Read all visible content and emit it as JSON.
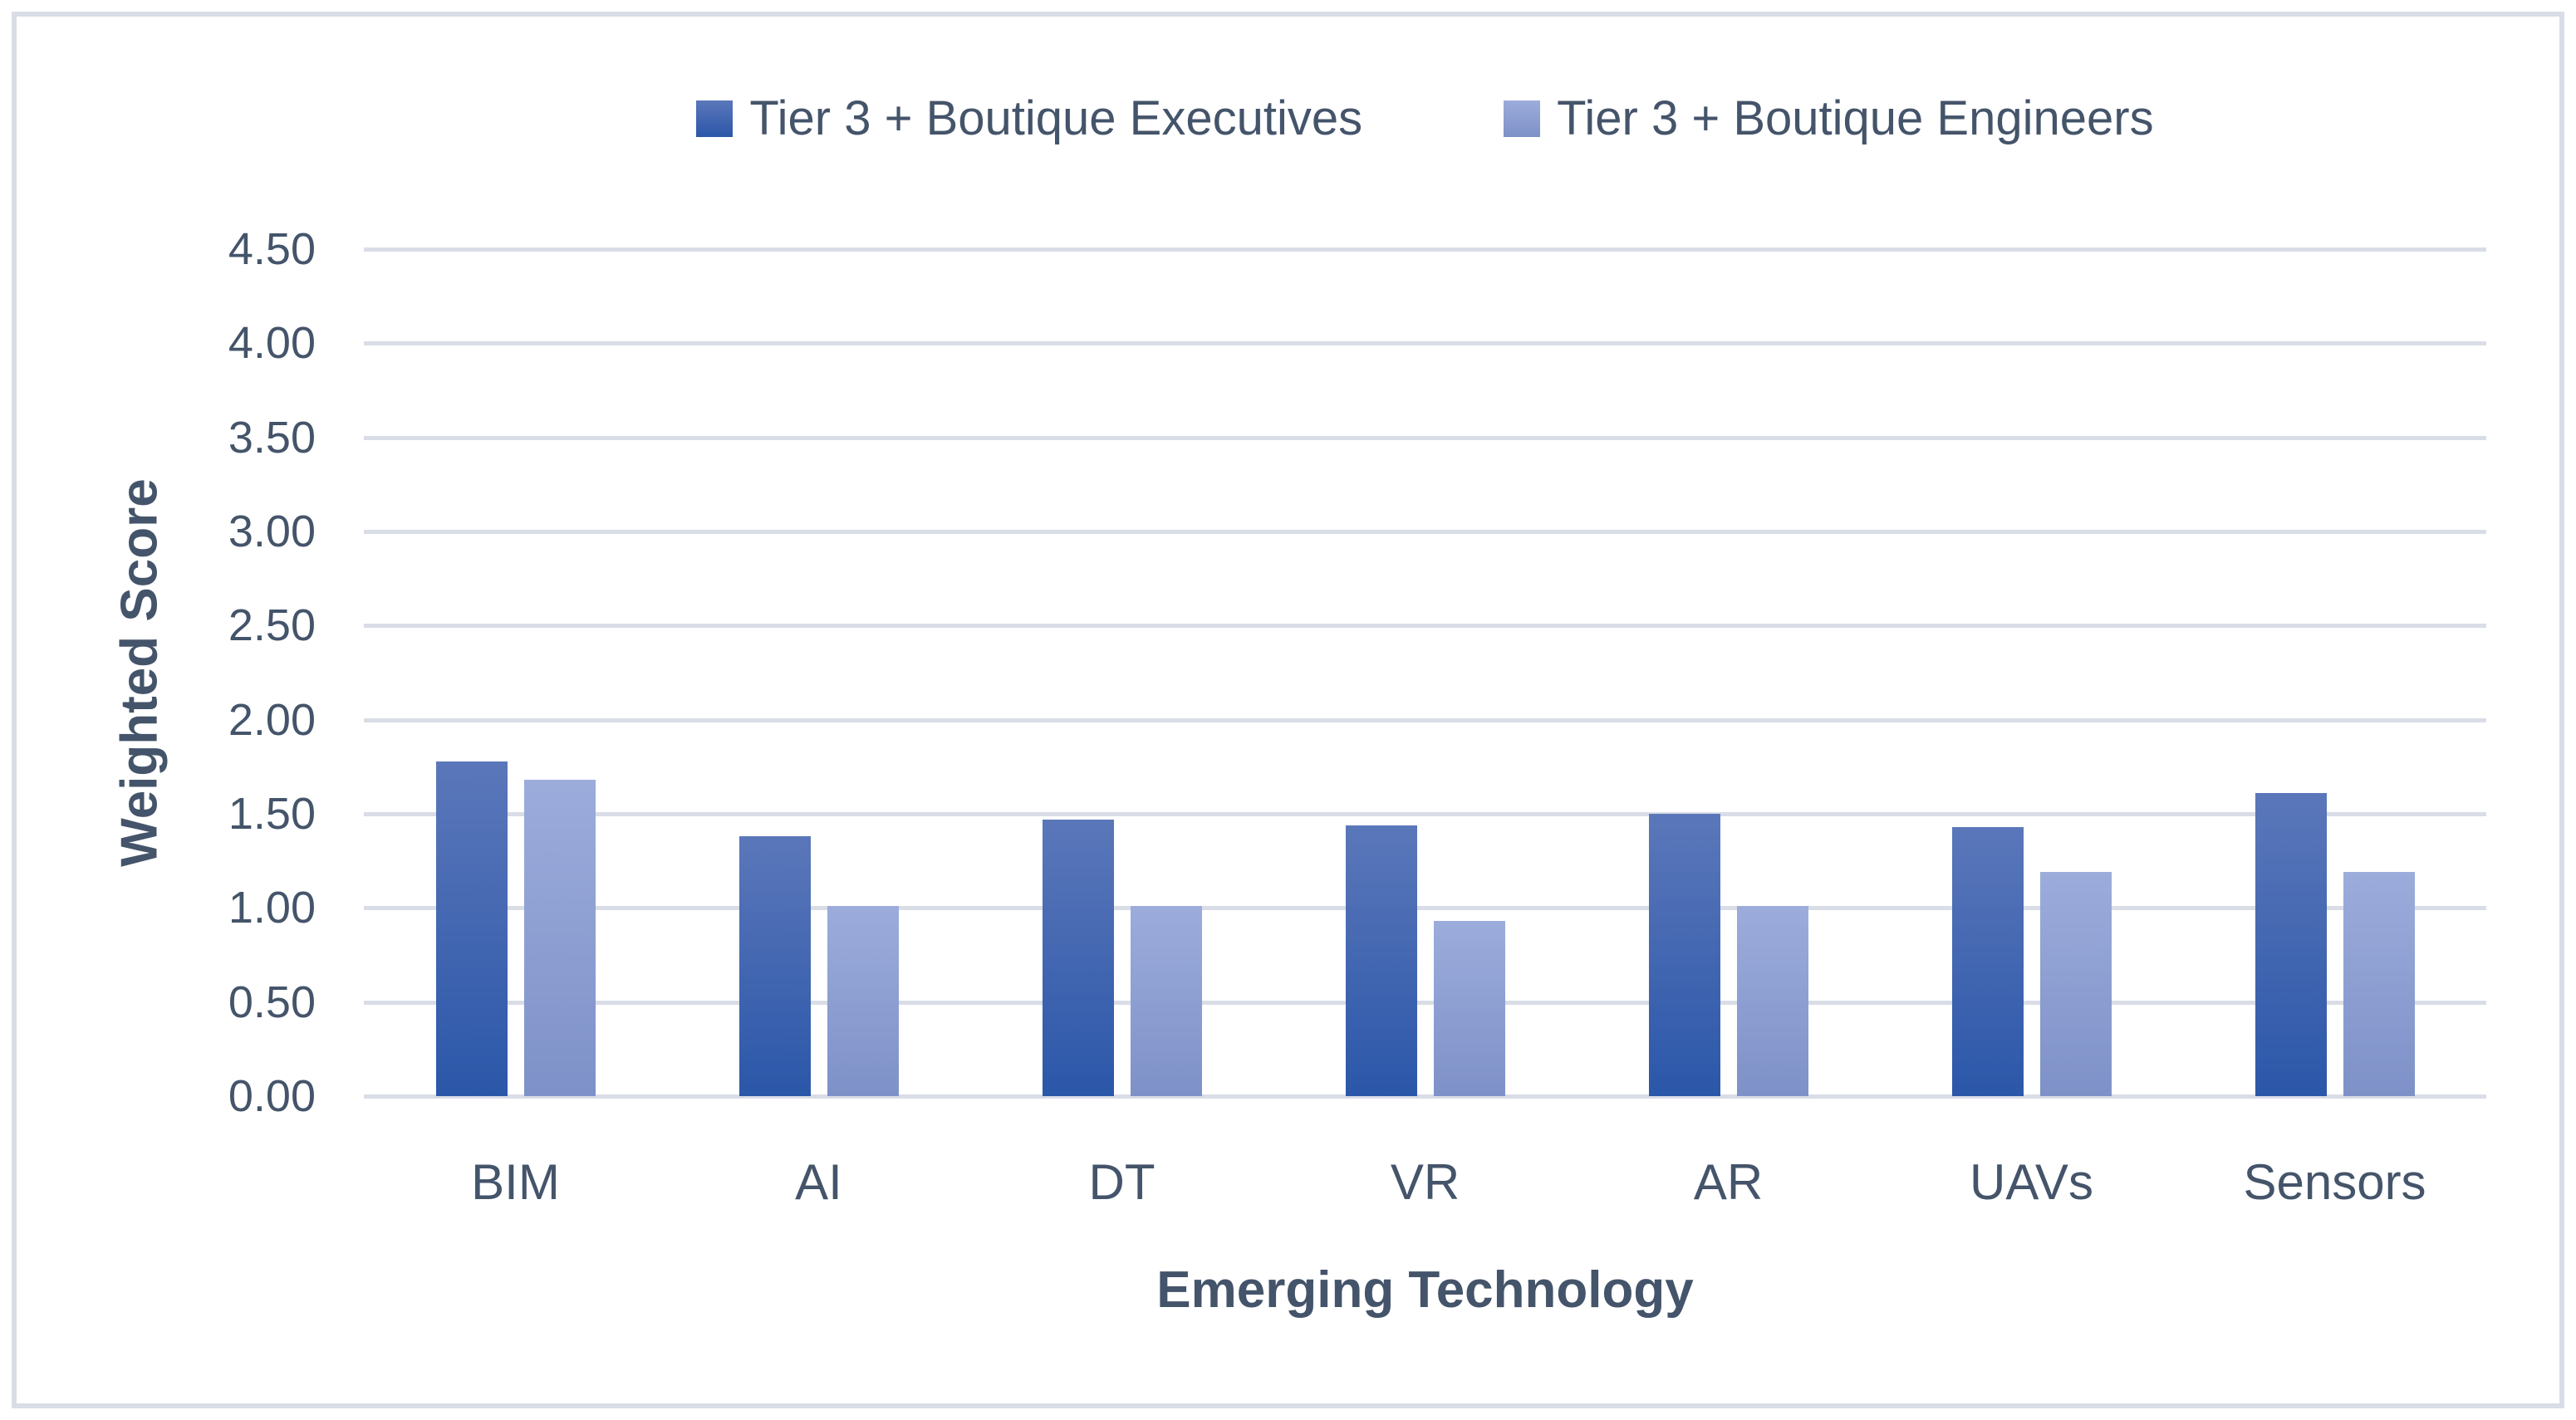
{
  "legend": {
    "items": [
      {
        "label": "Tier 3 + Boutique Executives"
      },
      {
        "label": "Tier 3 + Boutique Engineers"
      }
    ]
  },
  "colors": {
    "text": "#44546A",
    "gridline": "#D9DDE6",
    "series1_top": "#5B77BA",
    "series1_bottom": "#2B57A9",
    "series2_top": "#9CACDB",
    "series2_bottom": "#7E91C8"
  },
  "chart_data": {
    "type": "bar",
    "title": "",
    "categories": [
      "BIM",
      "AI",
      "DT",
      "VR",
      "AR",
      "UAVs",
      "Sensors"
    ],
    "series": [
      {
        "name": "Tier 3 + Boutique Executives",
        "color_top": "#5B77BA",
        "color_bottom": "#2B57A9",
        "values": [
          1.78,
          1.38,
          1.47,
          1.44,
          1.5,
          1.43,
          1.61
        ]
      },
      {
        "name": "Tier 3 + Boutique Engineers",
        "color_top": "#9CACDB",
        "color_bottom": "#7E91C8",
        "values": [
          1.68,
          1.01,
          1.01,
          0.93,
          1.01,
          1.19,
          1.19
        ]
      }
    ],
    "xlabel": "Emerging Technology",
    "ylabel": "Weighted Score",
    "ylim": [
      0,
      4.5
    ],
    "ytick_step": 0.5,
    "ytick_labels": [
      "0.00",
      "0.50",
      "1.00",
      "1.50",
      "2.00",
      "2.50",
      "3.00",
      "3.50",
      "4.00",
      "4.50"
    ],
    "grid": true,
    "legend_position": "top-center"
  }
}
